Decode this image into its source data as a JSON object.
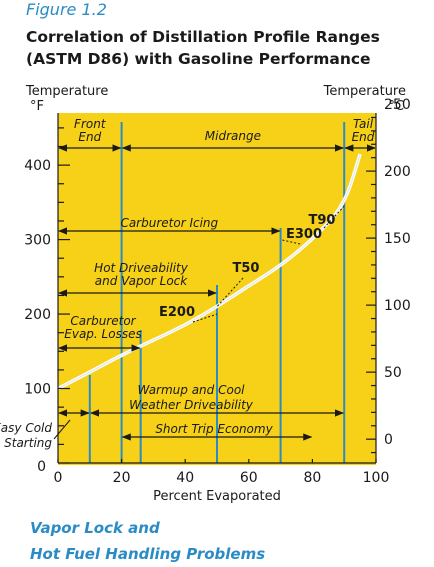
{
  "figure": {
    "label": "Figure 1.2",
    "title_line1": "Correlation of Distillation Profile Ranges",
    "title_line2": "(ASTM D86) with Gasoline Performance",
    "caption_line1": "Vapor Lock and",
    "caption_line2": "Hot Fuel Handling Problems"
  },
  "chart_data": {
    "type": "line",
    "xlabel": "Percent Evaporated",
    "ylabel_left_line1": "Temperature",
    "ylabel_left_line2": "°F",
    "ylabel_right_line1": "Temperature",
    "ylabel_right_line2": "°C",
    "xlim": [
      0,
      100
    ],
    "ylim": [
      0,
      470
    ],
    "x_ticks": [
      0,
      20,
      40,
      60,
      80,
      100
    ],
    "y_ticks_f": [
      0,
      100,
      200,
      300,
      400
    ],
    "y_ticks_c": [
      0,
      50,
      100,
      150,
      200,
      250
    ],
    "series": [
      {
        "x": [
          0,
          10,
          20,
          30,
          40,
          50,
          60,
          70,
          80,
          90,
          95
        ],
        "values": [
          100,
          122,
          145,
          165,
          185,
          210,
          238,
          265,
          300,
          345,
          415
        ]
      }
    ],
    "points": [
      {
        "label": "E200",
        "x": 50,
        "y": 200
      },
      {
        "label": "T50",
        "x": 50,
        "y": 210
      },
      {
        "label": "E300",
        "x": 70,
        "y": 300
      },
      {
        "label": "T90",
        "x": 90,
        "y": 345
      }
    ],
    "vertical_lines": [
      10,
      20,
      26,
      50,
      70,
      90
    ],
    "ranges": [
      {
        "label_line1": "Front",
        "label_line2": "End",
        "x0": 0,
        "x1": 20
      },
      {
        "label_line1": "Midrange",
        "label_line2": "",
        "x0": 20,
        "x1": 90
      },
      {
        "label_line1": "Tail",
        "label_line2": "End",
        "x0": 90,
        "x1": 100
      },
      {
        "label_line1": "Carburetor Icing",
        "label_line2": "",
        "x0": 0,
        "x1": 70
      },
      {
        "label_line1": "Hot Driveability",
        "label_line2": "and Vapor Lock",
        "x0": 0,
        "x1": 50
      },
      {
        "label_line1": "Carburetor",
        "label_line2": "Evap. Losses",
        "x0": 0,
        "x1": 26
      },
      {
        "label_line1": "Warmup and Cool",
        "label_line2": "Weather Driveability",
        "x0": 10,
        "x1": 90
      },
      {
        "label_line1": "Easy Cold",
        "label_line2": "Starting",
        "x0": 0,
        "x1": 10
      },
      {
        "label_line1": "Short Trip Economy",
        "label_line2": "",
        "x0": 20,
        "x1": 80
      }
    ],
    "colors": {
      "panel": "#f7d117",
      "curve": "#ffffff",
      "vline": "#2b8bc6",
      "text": "#1a1a1a",
      "accent": "#2b8bc6"
    }
  }
}
